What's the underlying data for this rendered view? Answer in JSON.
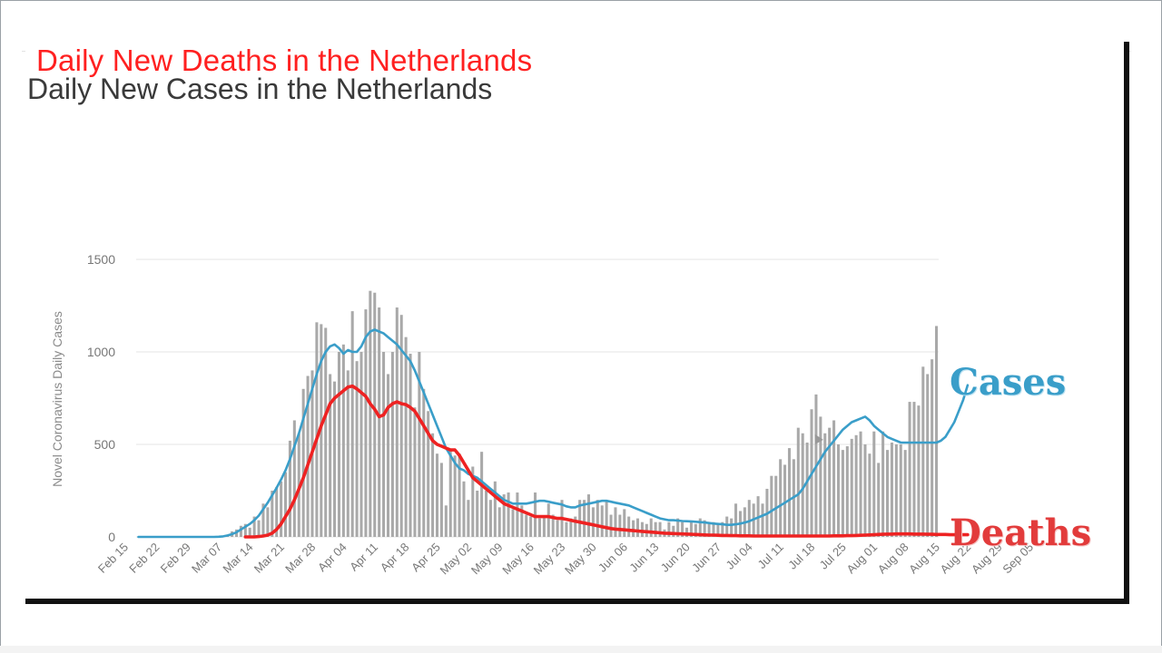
{
  "titles": {
    "deaths": "Daily New Deaths in the Netherlands",
    "cases": "Daily New Cases in the Netherlands"
  },
  "labels": {
    "cases": "Cases",
    "deaths": "Deaths"
  },
  "colors": {
    "bars": "#a9a9a9",
    "cases_line": "#3a9ec9",
    "deaths_line": "#ee2222",
    "grid": "#e6e6e6",
    "title_deaths": "#ff2020"
  },
  "chart_data": {
    "type": "bar",
    "ylabel": "Novel Coronavirus Daily Cases",
    "ylim": [
      0,
      1500
    ],
    "yticks": [
      0,
      500,
      1000,
      1500
    ],
    "xticks": [
      "Feb 15",
      "Feb 22",
      "Feb 29",
      "Mar 07",
      "Mar 14",
      "Mar 21",
      "Mar 28",
      "Apr 04",
      "Apr 11",
      "Apr 18",
      "Apr 25",
      "May 02",
      "May 09",
      "May 16",
      "May 23",
      "May 30",
      "Jun 06",
      "Jun 13",
      "Jun 20",
      "Jun 27",
      "Jul 04",
      "Jul 11",
      "Jul 18",
      "Jul 25",
      "Aug 01",
      "Aug 08",
      "Aug 15",
      "Aug 22",
      "Aug 29",
      "Sep 05"
    ],
    "grid": true,
    "series": [
      {
        "type": "bar",
        "values": [
          0,
          0,
          0,
          0,
          0,
          0,
          0,
          0,
          0,
          0,
          0,
          0,
          0,
          0,
          0,
          0,
          0,
          1,
          2,
          5,
          10,
          30,
          40,
          60,
          70,
          50,
          110,
          90,
          180,
          160,
          250,
          270,
          300,
          350,
          520,
          630,
          560,
          800,
          870,
          900,
          1160,
          1150,
          1130,
          880,
          840,
          1000,
          1040,
          900,
          1220,
          950,
          1000,
          1230,
          1330,
          1320,
          1240,
          1000,
          880,
          1000,
          1240,
          1200,
          1080,
          990,
          700,
          1000,
          800,
          680,
          560,
          450,
          400,
          170,
          470,
          440,
          450,
          300,
          200,
          380,
          250,
          460,
          250,
          200,
          300,
          160,
          230,
          240,
          150,
          240,
          170,
          120,
          110,
          240,
          100,
          110,
          180,
          120,
          90,
          200,
          80,
          100,
          110,
          200,
          200,
          230,
          160,
          200,
          170,
          190,
          120,
          160,
          120,
          150,
          110,
          90,
          100,
          80,
          70,
          100,
          80,
          80,
          40,
          80,
          60,
          100,
          80,
          50,
          80,
          70,
          100,
          90,
          70,
          80,
          70,
          80,
          110,
          100,
          180,
          140,
          160,
          200,
          180,
          220,
          180,
          260,
          330,
          330,
          420,
          390,
          480,
          420,
          590,
          560,
          510,
          690,
          770,
          650,
          560,
          590,
          630,
          500,
          470,
          490,
          530,
          550,
          570,
          500,
          450,
          570,
          400,
          570,
          470,
          510,
          500,
          500,
          470,
          730,
          730,
          710,
          920,
          880,
          960,
          1140
        ]
      },
      {
        "type": "line",
        "name": "Cases",
        "values": [
          0,
          0,
          0,
          0,
          0,
          0,
          0,
          0,
          0,
          0,
          0,
          0,
          0,
          0,
          0,
          0,
          0,
          0,
          1,
          3,
          8,
          15,
          25,
          40,
          55,
          70,
          90,
          115,
          150,
          185,
          225,
          265,
          310,
          360,
          420,
          490,
          560,
          640,
          720,
          800,
          880,
          950,
          1000,
          1030,
          1040,
          1020,
          990,
          1010,
          1000,
          1000,
          1030,
          1080,
          1110,
          1120,
          1110,
          1100,
          1080,
          1060,
          1040,
          1010,
          980,
          950,
          900,
          840,
          780,
          720,
          660,
          600,
          540,
          480,
          440,
          400,
          370,
          360,
          340,
          330,
          320,
          300,
          280,
          260,
          240,
          220,
          200,
          190,
          180,
          180,
          180,
          180,
          185,
          190,
          195,
          195,
          190,
          185,
          180,
          175,
          165,
          160,
          160,
          170,
          175,
          180,
          185,
          190,
          195,
          195,
          190,
          185,
          180,
          175,
          170,
          160,
          150,
          140,
          130,
          120,
          110,
          100,
          95,
          90,
          90,
          88,
          86,
          85,
          84,
          82,
          80,
          78,
          75,
          72,
          70,
          68,
          65,
          65,
          68,
          72,
          78,
          85,
          95,
          105,
          115,
          125,
          140,
          155,
          170,
          185,
          200,
          215,
          230,
          260,
          300,
          340,
          380,
          420,
          460,
          490,
          520,
          550,
          580,
          600,
          620,
          630,
          640,
          650,
          630,
          600,
          580,
          560,
          540,
          530,
          520,
          510,
          510,
          510,
          510,
          510,
          510,
          510,
          510,
          510,
          520,
          540,
          580,
          620,
          680,
          740,
          820
        ]
      },
      {
        "type": "line",
        "name": "Deaths",
        "values": [
          null,
          null,
          null,
          null,
          null,
          null,
          null,
          null,
          null,
          null,
          null,
          null,
          null,
          null,
          null,
          null,
          null,
          null,
          null,
          null,
          null,
          null,
          null,
          null,
          0,
          0,
          0,
          2,
          5,
          10,
          20,
          40,
          70,
          110,
          150,
          200,
          260,
          320,
          390,
          460,
          530,
          600,
          660,
          720,
          750,
          770,
          790,
          810,
          815,
          800,
          780,
          760,
          720,
          690,
          650,
          660,
          700,
          720,
          730,
          720,
          715,
          700,
          680,
          640,
          600,
          560,
          520,
          500,
          490,
          480,
          470,
          470,
          440,
          400,
          360,
          320,
          300,
          280,
          260,
          240,
          220,
          200,
          180,
          170,
          160,
          150,
          140,
          130,
          120,
          110,
          110,
          110,
          110,
          105,
          100,
          100,
          95,
          90,
          85,
          80,
          75,
          70,
          65,
          60,
          55,
          50,
          45,
          42,
          40,
          38,
          36,
          34,
          32,
          30,
          28,
          26,
          24,
          22,
          20,
          19,
          18,
          17,
          16,
          15,
          14,
          13,
          12,
          11,
          10,
          10,
          9,
          8,
          8,
          7,
          7,
          6,
          6,
          6,
          5,
          5,
          5,
          5,
          5,
          5,
          5,
          5,
          5,
          5,
          5,
          5,
          5,
          5,
          5,
          5,
          5,
          5,
          6,
          6,
          6,
          7,
          7,
          8,
          9,
          10,
          11,
          12,
          13,
          14,
          15,
          15,
          16,
          16,
          16,
          16,
          15,
          15,
          15,
          14,
          14,
          13,
          13,
          13,
          12,
          12,
          12,
          12,
          12
        ]
      }
    ]
  }
}
